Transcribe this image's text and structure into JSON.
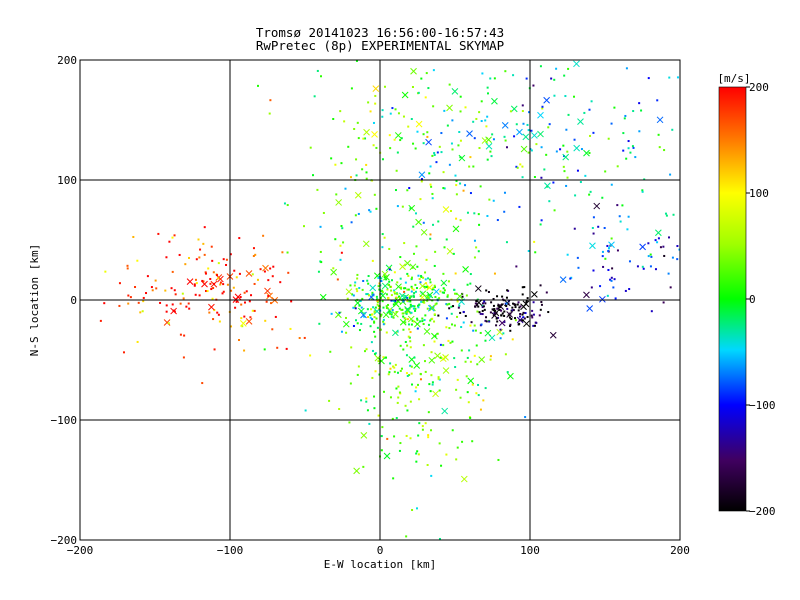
{
  "chart_data": {
    "type": "scatter",
    "title": "Tromsø 20141023 16:56:00-16:57:43",
    "subtitle": "RwPretec (8p) EXPERIMENTAL SKYMAP",
    "xlabel": "E-W location [km]",
    "ylabel": "N-S location [km]",
    "xlim": [
      -200,
      200
    ],
    "ylim": [
      -200,
      200
    ],
    "xticks": [
      -200,
      -100,
      0,
      100,
      200
    ],
    "yticks": [
      -200,
      -100,
      0,
      100,
      200
    ],
    "grid": true,
    "markers": [
      "x",
      "small dot"
    ],
    "colorbar": {
      "label": "[m/s]",
      "range": [
        -200,
        200
      ],
      "ticks": [
        200,
        100,
        0,
        -100,
        -200
      ],
      "colormap": "rainbow (black-purple-blue-cyan-green-yellow-orange-red)",
      "placement": "right"
    },
    "clusters": [
      {
        "region": "west",
        "x_center": -110,
        "y_center": 5,
        "x_spread": 30,
        "y_spread": 25,
        "velocity_m_s": 180,
        "approx_points": 180
      },
      {
        "region": "center",
        "x_center": 15,
        "y_center": 0,
        "x_spread": 22,
        "y_spread": 15,
        "velocity_m_s": 10,
        "approx_points": 320
      },
      {
        "region": "south-central",
        "x_center": 30,
        "y_center": -60,
        "x_spread": 30,
        "y_spread": 50,
        "velocity_m_s": 30,
        "approx_points": 260
      },
      {
        "region": "east",
        "x_center": 85,
        "y_center": -8,
        "x_spread": 15,
        "y_spread": 8,
        "velocity_m_s": -190,
        "approx_points": 150
      },
      {
        "region": "northeast",
        "x_center": 110,
        "y_center": 130,
        "x_spread": 55,
        "y_spread": 45,
        "velocity_m_s": -40,
        "approx_points": 220
      },
      {
        "region": "north-central",
        "x_center": 20,
        "y_center": 110,
        "x_spread": 40,
        "y_spread": 50,
        "velocity_m_s": 20,
        "approx_points": 180
      },
      {
        "region": "east-mid",
        "x_center": 160,
        "y_center": 30,
        "x_spread": 25,
        "y_spread": 20,
        "velocity_m_s": -90,
        "approx_points": 80
      }
    ]
  }
}
